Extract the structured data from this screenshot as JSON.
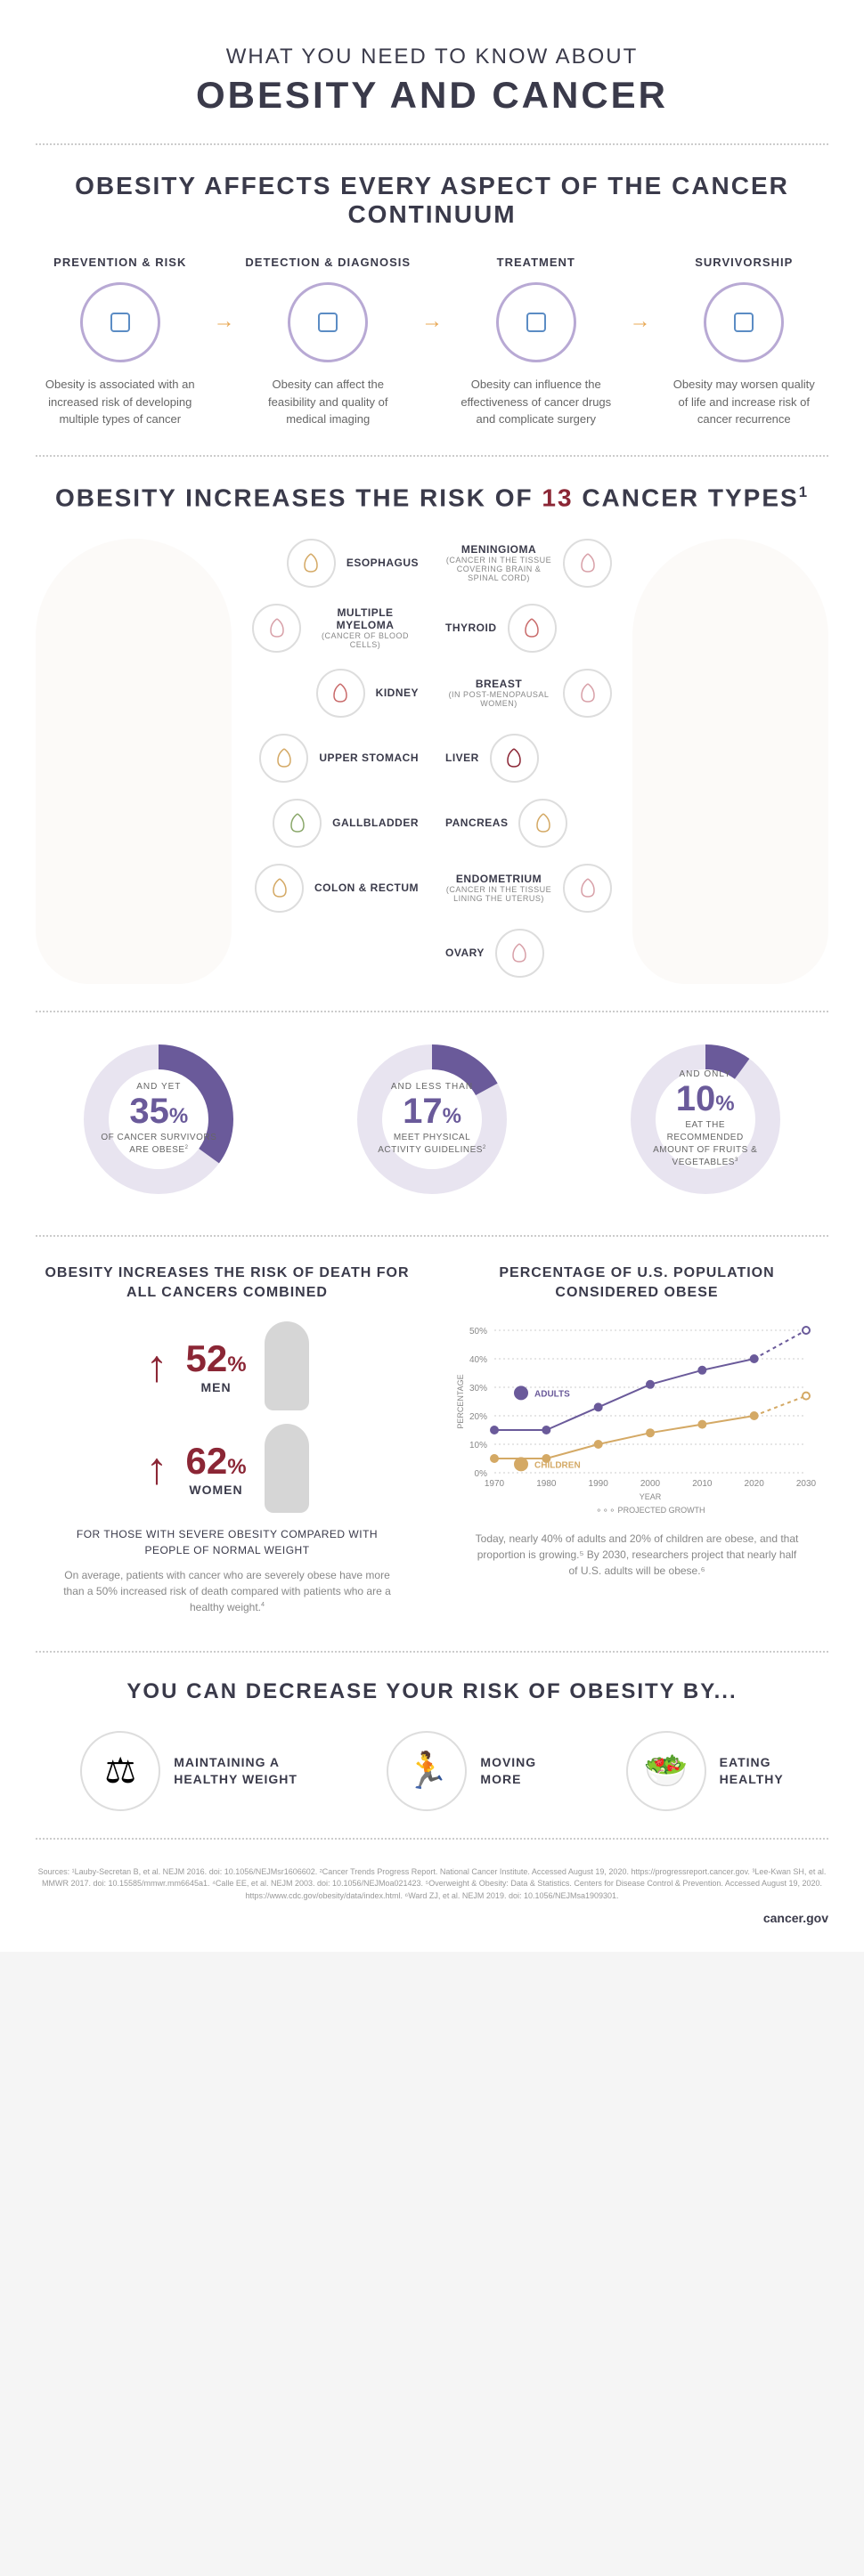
{
  "header": {
    "supertitle": "WHAT YOU NEED TO KNOW ABOUT",
    "title": "OBESITY AND CANCER"
  },
  "continuum": {
    "title": "OBESITY AFFECTS EVERY ASPECT OF THE CANCER CONTINUUM",
    "items": [
      {
        "title": "PREVENTION & RISK",
        "desc": "Obesity is associated with an increased risk of developing multiple types of cancer",
        "icon_color": "#5b8cc4"
      },
      {
        "title": "DETECTION & DIAGNOSIS",
        "desc": "Obesity can affect the feasibility and quality of medical imaging",
        "icon_color": "#5b8cc4"
      },
      {
        "title": "TREATMENT",
        "desc": "Obesity can influence the effectiveness of cancer drugs and complicate surgery",
        "icon_color": "#5b8cc4"
      },
      {
        "title": "SURVIVORSHIP",
        "desc": "Obesity may worsen quality of life and increase risk of cancer recurrence",
        "icon_color": "#5b8cc4"
      }
    ]
  },
  "cancer_types": {
    "title_a": "OBESITY INCREASES THE RISK OF ",
    "title_b": "13",
    "title_c": " CANCER TYPES",
    "title_sup": "1",
    "left": [
      {
        "label": "ESOPHAGUS",
        "sub": "",
        "color": "#d4a965"
      },
      {
        "label": "MULTIPLE MYELOMA",
        "sub": "(CANCER OF BLOOD CELLS)",
        "color": "#d8a0a8"
      },
      {
        "label": "KIDNEY",
        "sub": "",
        "color": "#c96b6b"
      },
      {
        "label": "UPPER STOMACH",
        "sub": "",
        "color": "#d4a965"
      },
      {
        "label": "GALLBLADDER",
        "sub": "",
        "color": "#8ba86b"
      },
      {
        "label": "COLON & RECTUM",
        "sub": "",
        "color": "#d4a965"
      }
    ],
    "right": [
      {
        "label": "MENINGIOMA",
        "sub": "(CANCER IN THE TISSUE COVERING BRAIN & SPINAL CORD)",
        "color": "#d8a0a8"
      },
      {
        "label": "THYROID",
        "sub": "",
        "color": "#c96b6b"
      },
      {
        "label": "BREAST",
        "sub": "(IN POST-MENOPAUSAL WOMEN)",
        "color": "#d8a0a8"
      },
      {
        "label": "LIVER",
        "sub": "",
        "color": "#8b2635"
      },
      {
        "label": "PANCREAS",
        "sub": "",
        "color": "#d4a965"
      },
      {
        "label": "ENDOMETRIUM",
        "sub": "(CANCER IN THE TISSUE LINING THE UTERUS)",
        "color": "#d8a0a8"
      },
      {
        "label": "OVARY",
        "sub": "",
        "color": "#d8a0a8"
      }
    ]
  },
  "donuts": [
    {
      "pre": "AND YET",
      "pct": "35",
      "desc": "OF CANCER SURVIVORS ARE OBESE",
      "sup": "2",
      "fill_pct": 35
    },
    {
      "pre": "AND LESS THAN",
      "pct": "17",
      "desc": "MEET PHYSICAL ACTIVITY GUIDELINES",
      "sup": "2",
      "fill_pct": 17
    },
    {
      "pre": "AND ONLY",
      "pct": "10",
      "desc": "EAT THE RECOMMENDED AMOUNT OF FRUITS & VEGETABLES",
      "sup": "3",
      "fill_pct": 10
    }
  ],
  "donut_colors": {
    "fill": "#6a5a9a",
    "track": "#e8e4f0"
  },
  "risk": {
    "title": "OBESITY INCREASES THE RISK OF DEATH FOR ALL CANCERS COMBINED",
    "men": {
      "pct": "52",
      "label": "MEN"
    },
    "women": {
      "pct": "62",
      "label": "WOMEN"
    },
    "subtitle": "FOR THOSE WITH SEVERE OBESITY COMPARED WITH PEOPLE OF NORMAL WEIGHT",
    "footnote": "On average, patients with cancer who are severely obese have more than a 50% increased risk of death compared with patients who are a healthy weight.",
    "footnote_sup": "4"
  },
  "chart": {
    "title": "PERCENTAGE OF U.S. POPULATION CONSIDERED OBESE",
    "ylabel": "PERCENTAGE",
    "xlabel": "YEAR",
    "legend_adults": "ADULTS",
    "legend_children": "CHILDREN",
    "legend_proj": "PROJECTED GROWTH",
    "years": [
      "1970",
      "1980",
      "1990",
      "2000",
      "2010",
      "2020",
      "2030"
    ],
    "yticks": [
      "0%",
      "10%",
      "20%",
      "30%",
      "40%",
      "50%"
    ],
    "adults": [
      15,
      15,
      23,
      31,
      36,
      40,
      50
    ],
    "children": [
      5,
      5,
      10,
      14,
      17,
      20,
      27
    ],
    "adults_color": "#6a5a9a",
    "children_color": "#d4a965",
    "proj_start_idx": 5,
    "footnote": "Today, nearly 40% of adults and 20% of children are obese, and that proportion is growing.⁵ By 2030, researchers project that nearly half of U.S. adults will be obese.⁶"
  },
  "decrease": {
    "title": "YOU CAN DECREASE YOUR RISK OF OBESITY BY...",
    "items": [
      {
        "label": "MAINTAINING A HEALTHY WEIGHT",
        "icon": "⚖"
      },
      {
        "label": "MOVING MORE",
        "icon": "🏃"
      },
      {
        "label": "EATING HEALTHY",
        "icon": "🥗"
      }
    ]
  },
  "sources": "Sources: ¹Lauby-Secretan B, et al. NEJM 2016. doi: 10.1056/NEJMsr1606602. ²Cancer Trends Progress Report. National Cancer Institute. Accessed August 19, 2020. https://progressreport.cancer.gov. ³Lee-Kwan SH, et al. MMWR 2017. doi: 10.15585/mmwr.mm6645a1. ⁴Calle EE, et al. NEJM 2003. doi: 10.1056/NEJMoa021423. ⁵Overweight & Obesity: Data & Statistics. Centers for Disease Control & Prevention. Accessed August 19, 2020. https://www.cdc.gov/obesity/data/index.html. ⁶Ward ZJ, et al. NEJM 2019. doi: 10.1056/NEJMsa1909301.",
  "site": "cancer.gov"
}
